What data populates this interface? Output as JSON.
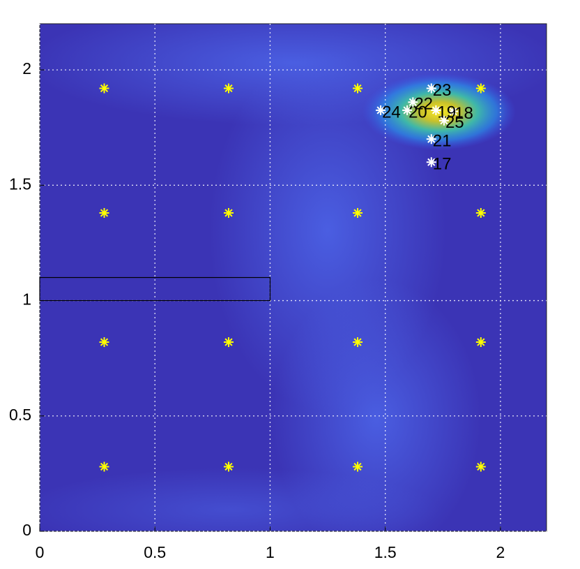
{
  "chart_data": {
    "type": "scatter",
    "xlim": [
      0,
      2.2
    ],
    "ylim": [
      0,
      2.2
    ],
    "xticks": [
      0,
      0.5,
      1,
      1.5,
      2
    ],
    "yticks": [
      0,
      0.5,
      1,
      1.5,
      2
    ],
    "grid": true,
    "obstacle": {
      "x": [
        0,
        1
      ],
      "y": [
        1,
        1.1
      ]
    },
    "series": [
      {
        "color": "#ffff00",
        "x": [
          0.28,
          0.82,
          1.38,
          1.915,
          0.28,
          0.82,
          1.38,
          1.915,
          0.28,
          0.82,
          1.38,
          1.915,
          0.28,
          0.82,
          1.38,
          1.915
        ],
        "values": [
          1.92,
          1.92,
          1.92,
          1.92,
          1.38,
          1.38,
          1.38,
          1.38,
          0.82,
          0.82,
          0.82,
          0.82,
          0.28,
          0.28,
          0.28,
          0.28
        ]
      },
      {
        "color": "#ffffff",
        "x": [
          1.7,
          1.795,
          1.72,
          1.595,
          1.7,
          1.62,
          1.7,
          1.48,
          1.755
        ],
        "values": [
          1.6,
          1.82,
          1.825,
          1.825,
          1.7,
          1.86,
          1.92,
          1.825,
          1.78
        ],
        "labels": [
          "17",
          "18",
          "19",
          "20",
          "21",
          "22",
          "23",
          "24",
          "25"
        ]
      }
    ]
  }
}
